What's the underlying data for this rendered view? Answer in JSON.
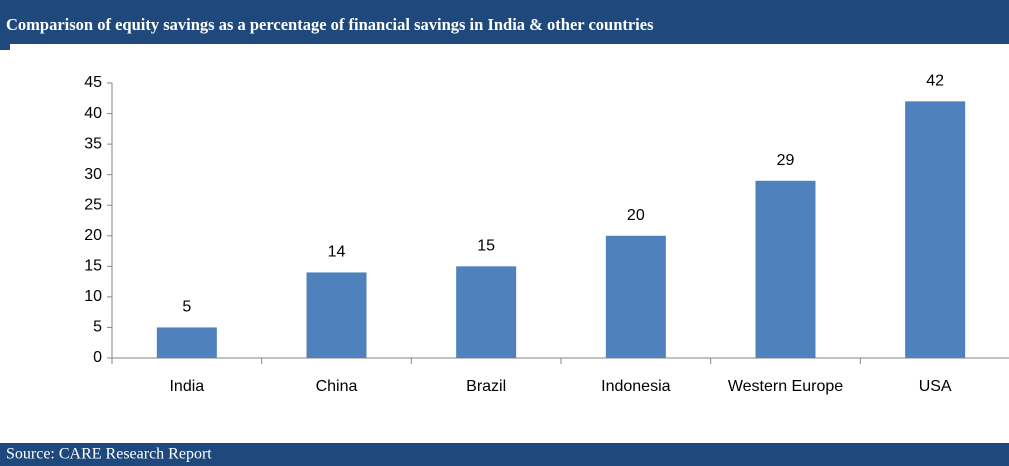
{
  "chart_data": {
    "type": "bar",
    "title": "Comparison of  equity savings as a percentage of financial savings in India & other countries",
    "source": "Source: CARE Research  Report",
    "categories": [
      "India",
      "China",
      "Brazil",
      "Indonesia",
      "Western Europe",
      "USA"
    ],
    "values": [
      5,
      14,
      15,
      20,
      29,
      42
    ],
    "color": "#4f81bd",
    "ylim": [
      0,
      45
    ],
    "yticks": [
      0,
      5,
      10,
      15,
      20,
      25,
      30,
      35,
      40,
      45
    ],
    "grid": false
  }
}
